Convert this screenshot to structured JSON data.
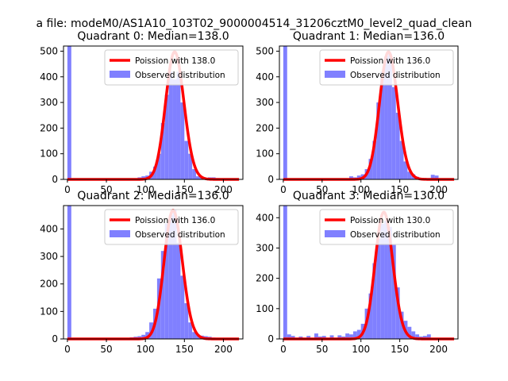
{
  "figure": {
    "suptitle": "a file: modeM0/AS1A10_103T02_9000004514_31206cztM0_level2_quad_clean"
  },
  "colors": {
    "poisson": "#ff0000",
    "observed": "#8080ff",
    "axis": "#000000",
    "background": "#ffffff"
  },
  "chart_data": [
    {
      "type": "bar",
      "quadrant": 0,
      "title": "Quadrant 0: Median=138.0",
      "xlim": [
        -5,
        225
      ],
      "ylim": [
        0,
        520
      ],
      "xticks": [
        0,
        50,
        100,
        150,
        200
      ],
      "yticks": [
        0,
        100,
        200,
        300,
        400,
        500
      ],
      "poisson_mean": 138,
      "poisson_peak": 497,
      "poisson_range": [
        0,
        220
      ],
      "legend": {
        "location": "top-right",
        "poisson_label": "Poission with 138.0",
        "observed_label": "Observed distribution"
      },
      "observed": {
        "bin_width": 5,
        "bin_starts": [
          0,
          5,
          90,
          95,
          100,
          105,
          110,
          115,
          120,
          125,
          130,
          135,
          140,
          145,
          150,
          155,
          160,
          165,
          170,
          175,
          180,
          185,
          190,
          195
        ],
        "counts": [
          520,
          3,
          8,
          12,
          15,
          30,
          50,
          100,
          220,
          330,
          420,
          390,
          420,
          300,
          150,
          100,
          40,
          12,
          10,
          5,
          8,
          8,
          5,
          3
        ]
      }
    },
    {
      "type": "bar",
      "quadrant": 1,
      "title": "Quadrant 1: Median=136.0",
      "xlim": [
        -5,
        225
      ],
      "ylim": [
        0,
        520
      ],
      "xticks": [
        0,
        50,
        100,
        150,
        200
      ],
      "yticks": [
        0,
        100,
        200,
        300,
        400,
        500
      ],
      "poisson_mean": 136,
      "poisson_peak": 497,
      "poisson_range": [
        0,
        220
      ],
      "legend": {
        "location": "top-right",
        "poisson_label": "Poission with 136.0",
        "observed_label": "Observed distribution"
      },
      "observed": {
        "bin_width": 5,
        "bin_starts": [
          0,
          5,
          85,
          90,
          95,
          100,
          105,
          110,
          115,
          120,
          125,
          130,
          135,
          140,
          145,
          150,
          155,
          160,
          165,
          170,
          175,
          180,
          185,
          190,
          195
        ],
        "counts": [
          520,
          3,
          12,
          8,
          15,
          20,
          40,
          80,
          150,
          300,
          420,
          480,
          490,
          360,
          260,
          150,
          70,
          30,
          20,
          10,
          5,
          5,
          5,
          18,
          15
        ]
      }
    },
    {
      "type": "bar",
      "quadrant": 2,
      "title": "Quadrant 2: Median=136.0",
      "xlim": [
        -5,
        225
      ],
      "ylim": [
        0,
        485
      ],
      "xticks": [
        0,
        50,
        100,
        150,
        200
      ],
      "yticks": [
        0,
        100,
        200,
        300,
        400
      ],
      "poisson_mean": 136,
      "poisson_peak": 468,
      "poisson_range": [
        0,
        220
      ],
      "legend": {
        "location": "top-right",
        "poisson_label": "Poission with 136.0",
        "observed_label": "Observed distribution"
      },
      "observed": {
        "bin_width": 5,
        "bin_starts": [
          0,
          5,
          80,
          85,
          90,
          95,
          100,
          105,
          110,
          115,
          120,
          125,
          130,
          135,
          140,
          145,
          150,
          155,
          160,
          165,
          170,
          175,
          180,
          185
        ],
        "counts": [
          485,
          3,
          6,
          8,
          10,
          15,
          25,
          60,
          110,
          220,
          320,
          420,
          450,
          470,
          350,
          230,
          130,
          60,
          25,
          15,
          12,
          10,
          8,
          5
        ]
      }
    },
    {
      "type": "bar",
      "quadrant": 3,
      "title": "Quadrant 3: Median=130.0",
      "xlim": [
        -5,
        225
      ],
      "ylim": [
        0,
        440
      ],
      "xticks": [
        0,
        50,
        100,
        150,
        200
      ],
      "yticks": [
        0,
        100,
        200,
        300,
        400
      ],
      "poisson_mean": 130,
      "poisson_peak": 418,
      "poisson_range": [
        0,
        220
      ],
      "legend": {
        "location": "top-right",
        "poisson_label": "Poission with 130.0",
        "observed_label": "Observed distribution"
      },
      "observed": {
        "bin_width": 5,
        "bin_starts": [
          0,
          5,
          10,
          20,
          30,
          40,
          45,
          50,
          60,
          70,
          75,
          80,
          85,
          90,
          95,
          100,
          105,
          110,
          115,
          120,
          125,
          130,
          135,
          140,
          145,
          150,
          155,
          160,
          165,
          170,
          175,
          180,
          185
        ],
        "counts": [
          440,
          15,
          10,
          8,
          10,
          18,
          8,
          10,
          12,
          12,
          8,
          18,
          15,
          25,
          30,
          50,
          100,
          150,
          250,
          330,
          380,
          390,
          370,
          310,
          170,
          90,
          60,
          40,
          25,
          15,
          8,
          10,
          15
        ]
      }
    }
  ]
}
